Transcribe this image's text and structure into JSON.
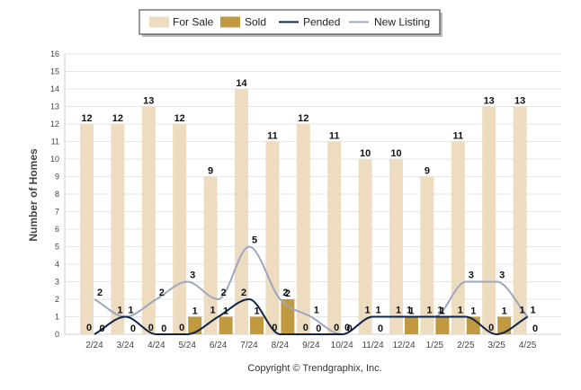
{
  "chart_data": {
    "type": "bar",
    "title": "",
    "xlabel": "",
    "ylabel": "Number of Homes",
    "ylim": [
      0,
      16
    ],
    "yticks": [
      0,
      1,
      2,
      3,
      4,
      5,
      6,
      7,
      8,
      9,
      10,
      11,
      12,
      13,
      14,
      15,
      16
    ],
    "grid": true,
    "legend_position": "top-center",
    "categories": [
      "2/24",
      "3/24",
      "4/24",
      "5/24",
      "6/24",
      "7/24",
      "8/24",
      "9/24",
      "10/24",
      "11/24",
      "12/24",
      "1/25",
      "2/25",
      "3/25",
      "4/25"
    ],
    "series": [
      {
        "name": "For Sale",
        "kind": "bar",
        "color": "#eddcc0",
        "values": [
          12,
          12,
          13,
          12,
          9,
          14,
          11,
          12,
          11,
          10,
          10,
          9,
          11,
          13,
          13
        ]
      },
      {
        "name": "Sold",
        "kind": "bar",
        "color": "#c19a3f",
        "values": [
          0,
          0,
          0,
          1,
          1,
          1,
          2,
          0,
          0,
          0,
          1,
          1,
          1,
          1,
          0
        ]
      },
      {
        "name": "Pended",
        "kind": "line",
        "color": "#0d2347",
        "values": [
          0,
          1,
          0,
          0,
          1,
          2,
          0,
          0,
          0,
          1,
          1,
          1,
          1,
          0,
          1
        ]
      },
      {
        "name": "New Listing",
        "kind": "line",
        "color": "#9ea7bd",
        "values": [
          2,
          1,
          2,
          3,
          2,
          5,
          2,
          1,
          0,
          1,
          1,
          1,
          3,
          3,
          1
        ]
      }
    ],
    "copyright": "Copyright © Trendgraphix, Inc."
  }
}
